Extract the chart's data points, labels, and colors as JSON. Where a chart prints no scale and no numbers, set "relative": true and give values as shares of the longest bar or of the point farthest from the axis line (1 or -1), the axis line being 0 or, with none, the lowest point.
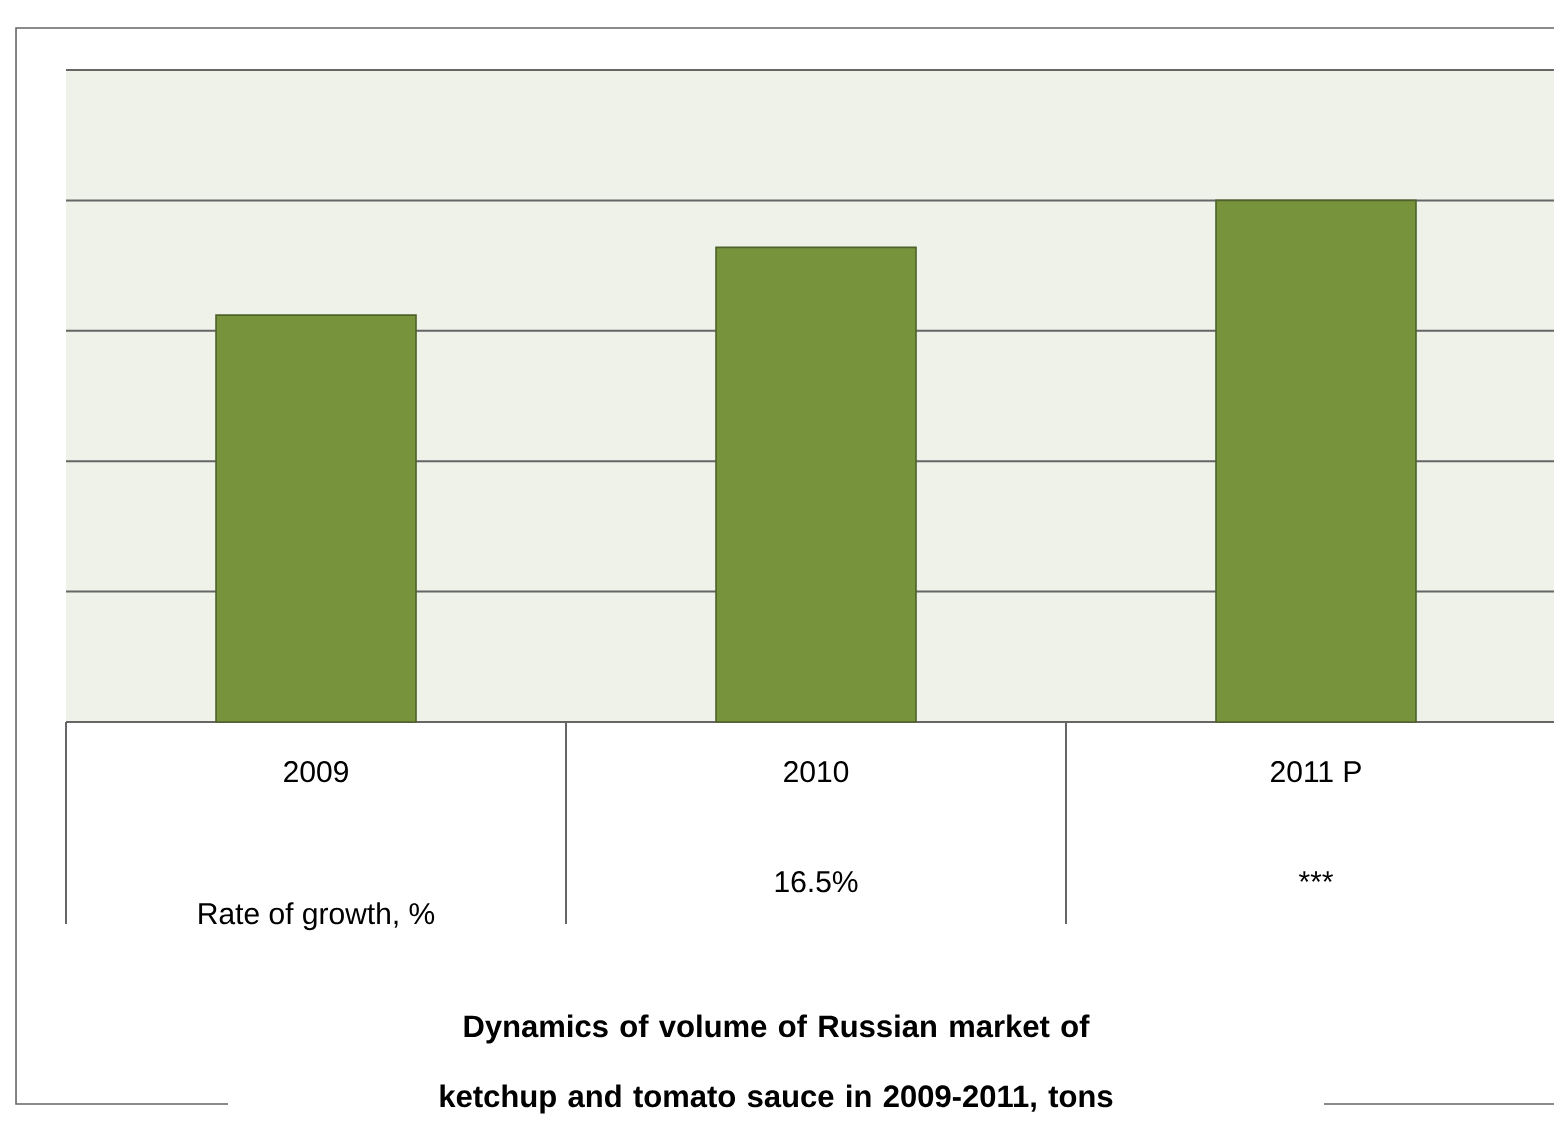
{
  "chart_data": {
    "type": "bar",
    "title": "Dynamics of volume of Russian market of ketchup and tomato sauce in 2009-2011, tons",
    "categories": [
      "2009",
      "2010",
      "2011 P"
    ],
    "values": [
      0.78,
      0.91,
      1
    ],
    "color": "#77933c",
    "relative": true,
    "grid": "y",
    "annotations": [
      "Rate of growth, %",
      "16.5%",
      "***"
    ]
  }
}
